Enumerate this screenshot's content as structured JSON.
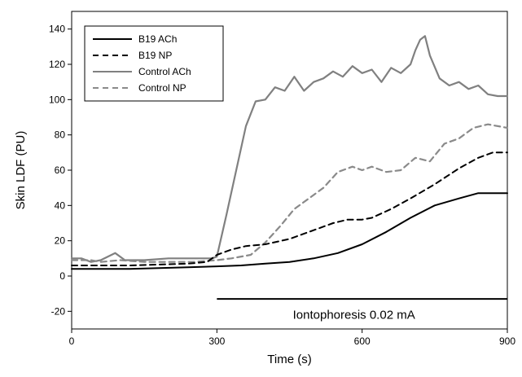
{
  "chart_data": {
    "type": "line",
    "xlabel": "Time (s)",
    "ylabel": "Skin LDF (PU)",
    "xlim": [
      0,
      900
    ],
    "ylim": [
      -30,
      150
    ],
    "x_ticks": [
      0,
      300,
      600,
      900
    ],
    "y_ticks": [
      -20,
      0,
      20,
      40,
      60,
      80,
      100,
      120,
      140
    ],
    "grid": false,
    "legend": {
      "position": "top-left"
    },
    "series": [
      {
        "name": "B19 ACh",
        "color": "#000000",
        "dash": "solid",
        "x": [
          0,
          60,
          120,
          180,
          240,
          300,
          350,
          400,
          450,
          500,
          550,
          600,
          650,
          700,
          750,
          800,
          840,
          870,
          900
        ],
        "y": [
          4,
          4,
          4,
          4.5,
          5,
          5.5,
          6,
          7,
          8,
          10,
          13,
          18,
          25,
          33,
          40,
          44,
          47,
          47,
          47
        ]
      },
      {
        "name": "B19 NP",
        "color": "#000000",
        "dash": "dashed",
        "x": [
          0,
          60,
          120,
          180,
          240,
          280,
          300,
          330,
          360,
          400,
          450,
          500,
          540,
          570,
          600,
          620,
          660,
          700,
          750,
          800,
          840,
          870,
          900
        ],
        "y": [
          6,
          6,
          6,
          6.5,
          7,
          8,
          12,
          15,
          17,
          18,
          21,
          26,
          30,
          32,
          32,
          33,
          38,
          44,
          52,
          61,
          67,
          70,
          70
        ]
      },
      {
        "name": "Control ACh",
        "color": "#808080",
        "dash": "solid",
        "x": [
          0,
          20,
          40,
          60,
          90,
          110,
          150,
          200,
          250,
          290,
          300,
          320,
          340,
          360,
          380,
          400,
          420,
          440,
          460,
          480,
          500,
          520,
          540,
          560,
          580,
          600,
          620,
          640,
          660,
          680,
          700,
          710,
          720,
          730,
          740,
          760,
          780,
          800,
          820,
          840,
          860,
          880,
          900
        ],
        "y": [
          10,
          10,
          8,
          9,
          13,
          9,
          9,
          10,
          10,
          10,
          11,
          35,
          60,
          85,
          99,
          100,
          107,
          105,
          113,
          105,
          110,
          112,
          116,
          113,
          119,
          115,
          117,
          110,
          118,
          115,
          120,
          128,
          134,
          136,
          125,
          112,
          108,
          110,
          106,
          108,
          103,
          102,
          102
        ]
      },
      {
        "name": "Control NP",
        "color": "#8a8a8a",
        "dash": "dashed",
        "x": [
          0,
          40,
          60,
          100,
          150,
          200,
          250,
          300,
          330,
          370,
          400,
          430,
          460,
          490,
          520,
          550,
          580,
          600,
          620,
          650,
          680,
          710,
          740,
          770,
          800,
          830,
          860,
          900
        ],
        "y": [
          9,
          9,
          8,
          9,
          8,
          8,
          8,
          9,
          10,
          12,
          19,
          28,
          38,
          44,
          50,
          59,
          62,
          60,
          62,
          59,
          60,
          67,
          65,
          75,
          78,
          84,
          86,
          84
        ]
      }
    ],
    "annotations": [
      {
        "type": "hline",
        "y": -13,
        "x_start": 300,
        "x_end": 900,
        "color": "#000000"
      },
      {
        "type": "text",
        "text": "Iontophoresis 0.02 mA",
        "x": 600,
        "y": -22
      }
    ]
  }
}
